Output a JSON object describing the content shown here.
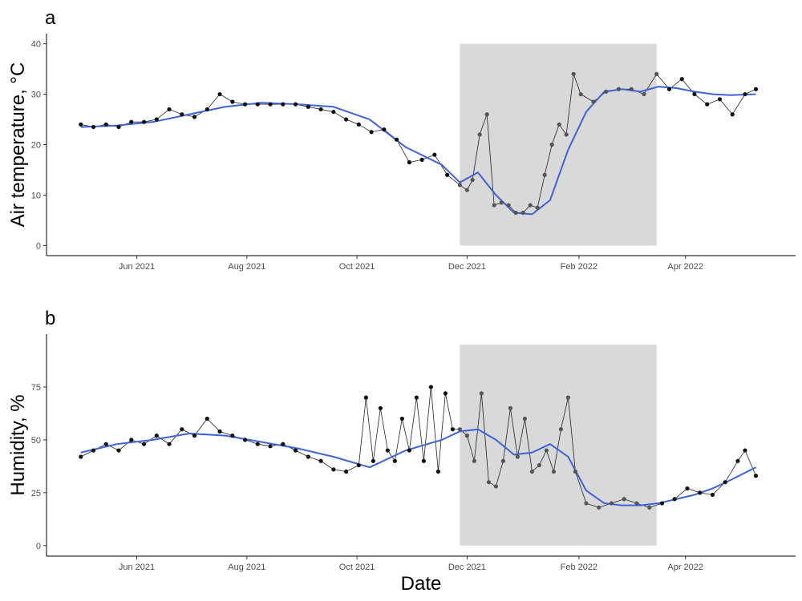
{
  "chart_data": [
    {
      "type": "line",
      "panel_label": "a",
      "ylabel": "Air temperature, °C",
      "xlabel": "",
      "x_type": "date",
      "xlim": [
        "2021-04-12",
        "2022-06-01"
      ],
      "ylim": [
        -2,
        42
      ],
      "x_ticks": [
        "2021-06-01",
        "2021-08-01",
        "2021-10-01",
        "2021-12-01",
        "2022-02-01",
        "2022-04-01"
      ],
      "x_tick_labels": [
        "Jun 2021",
        "Aug 2021",
        "Oct 2021",
        "Dec 2021",
        "Feb 2022",
        "Apr 2022"
      ],
      "y_ticks": [
        0,
        10,
        20,
        30,
        40
      ],
      "y_tick_labels": [
        "0",
        "10",
        "20",
        "30",
        "40"
      ],
      "grid": false,
      "shaded_region": {
        "x": [
          "2021-11-27",
          "2022-03-16"
        ],
        "y": [
          0,
          40
        ],
        "color": "#d9d9d9"
      },
      "observed_color": "#111111",
      "observed_color_in_shade": "#555555",
      "smooth_color": "#3b64db",
      "series": [
        {
          "x": [
            "2021-05-01",
            "2021-05-08",
            "2021-05-15",
            "2021-05-22",
            "2021-05-29",
            "2021-06-05",
            "2021-06-12",
            "2021-06-19",
            "2021-06-26",
            "2021-07-03",
            "2021-07-10",
            "2021-07-17",
            "2021-07-24",
            "2021-07-31",
            "2021-08-07",
            "2021-08-14",
            "2021-08-21",
            "2021-08-28",
            "2021-09-04",
            "2021-09-11",
            "2021-09-18",
            "2021-09-25",
            "2021-10-02",
            "2021-10-09",
            "2021-10-16",
            "2021-10-23",
            "2021-10-30",
            "2021-11-06",
            "2021-11-13",
            "2021-11-20",
            "2021-11-27",
            "2021-12-01",
            "2021-12-04",
            "2021-12-08",
            "2021-12-12",
            "2021-12-16",
            "2021-12-20",
            "2021-12-24",
            "2021-12-28",
            "2022-01-01",
            "2022-01-05",
            "2022-01-09",
            "2022-01-13",
            "2022-01-17",
            "2022-01-21",
            "2022-01-25",
            "2022-01-29",
            "2022-02-02",
            "2022-02-09",
            "2022-02-16",
            "2022-02-23",
            "2022-03-02",
            "2022-03-09",
            "2022-03-16",
            "2022-03-23",
            "2022-03-30",
            "2022-04-06",
            "2022-04-13",
            "2022-04-20",
            "2022-04-27",
            "2022-05-04",
            "2022-05-10"
          ],
          "values": [
            24,
            23.5,
            24,
            23.5,
            24.5,
            24.5,
            25,
            27,
            26,
            25.5,
            27,
            30,
            28.5,
            28,
            28,
            28,
            28,
            28,
            27.5,
            27,
            26.5,
            25,
            24,
            22.5,
            23,
            21,
            16.5,
            17,
            18,
            14,
            12,
            11,
            13,
            22,
            26,
            8,
            8.5,
            8,
            6.5,
            6.5,
            8,
            7.5,
            14,
            20,
            24,
            22,
            34,
            30,
            28.5,
            30.5,
            31,
            31,
            30,
            34,
            31,
            33,
            30,
            28,
            29,
            26,
            30,
            31
          ]
        },
        {
          "name": "",
          "smooth": true,
          "x": [
            "2021-05-01",
            "2021-05-21",
            "2021-06-10",
            "2021-06-30",
            "2021-07-20",
            "2021-08-09",
            "2021-08-29",
            "2021-09-18",
            "2021-10-08",
            "2021-10-28",
            "2021-11-17",
            "2021-11-27",
            "2021-12-07",
            "2021-12-17",
            "2021-12-27",
            "2022-01-06",
            "2022-01-16",
            "2022-01-26",
            "2022-02-05",
            "2022-02-15",
            "2022-02-25",
            "2022-03-07",
            "2022-03-17",
            "2022-03-27",
            "2022-04-06",
            "2022-04-16",
            "2022-04-26",
            "2022-05-10"
          ],
          "values": [
            23.5,
            23.8,
            24.5,
            26,
            27.5,
            28.3,
            28,
            27.5,
            25,
            19.5,
            16,
            12.5,
            14.5,
            10,
            6.5,
            6.2,
            9,
            19,
            26.5,
            30.5,
            31,
            30.5,
            31.5,
            31.2,
            30.5,
            30,
            29.8,
            30
          ]
        }
      ]
    },
    {
      "type": "line",
      "panel_label": "b",
      "ylabel": "Humidity, %",
      "xlabel": "Date",
      "x_type": "date",
      "xlim": [
        "2021-04-12",
        "2022-06-01"
      ],
      "ylim": [
        -5,
        100
      ],
      "x_ticks": [
        "2021-06-01",
        "2021-08-01",
        "2021-10-01",
        "2021-12-01",
        "2022-02-01",
        "2022-04-01"
      ],
      "x_tick_labels": [
        "Jun 2021",
        "Aug 2021",
        "Oct 2021",
        "Dec 2021",
        "Feb 2022",
        "Apr 2022"
      ],
      "y_ticks": [
        0,
        25,
        50,
        75
      ],
      "y_tick_labels": [
        "0",
        "25",
        "50",
        "75"
      ],
      "grid": false,
      "shaded_region": {
        "x": [
          "2021-11-27",
          "2022-03-16"
        ],
        "y": [
          0,
          95
        ],
        "color": "#d9d9d9"
      },
      "observed_color": "#111111",
      "observed_color_in_shade": "#555555",
      "smooth_color": "#3b64db",
      "series": [
        {
          "x": [
            "2021-05-01",
            "2021-05-08",
            "2021-05-15",
            "2021-05-22",
            "2021-05-29",
            "2021-06-05",
            "2021-06-12",
            "2021-06-19",
            "2021-06-26",
            "2021-07-03",
            "2021-07-10",
            "2021-07-17",
            "2021-07-24",
            "2021-07-31",
            "2021-08-07",
            "2021-08-14",
            "2021-08-21",
            "2021-08-28",
            "2021-09-04",
            "2021-09-11",
            "2021-09-18",
            "2021-09-25",
            "2021-10-02",
            "2021-10-06",
            "2021-10-10",
            "2021-10-14",
            "2021-10-18",
            "2021-10-22",
            "2021-10-26",
            "2021-10-30",
            "2021-11-03",
            "2021-11-07",
            "2021-11-11",
            "2021-11-15",
            "2021-11-19",
            "2021-11-23",
            "2021-11-27",
            "2021-12-01",
            "2021-12-05",
            "2021-12-09",
            "2021-12-13",
            "2021-12-17",
            "2021-12-21",
            "2021-12-25",
            "2021-12-29",
            "2022-01-02",
            "2022-01-06",
            "2022-01-10",
            "2022-01-14",
            "2022-01-18",
            "2022-01-22",
            "2022-01-26",
            "2022-01-30",
            "2022-02-05",
            "2022-02-12",
            "2022-02-19",
            "2022-02-26",
            "2022-03-05",
            "2022-03-12",
            "2022-03-19",
            "2022-03-26",
            "2022-04-02",
            "2022-04-09",
            "2022-04-16",
            "2022-04-23",
            "2022-04-30",
            "2022-05-04",
            "2022-05-10"
          ],
          "values": [
            42,
            45,
            48,
            45,
            50,
            48,
            52,
            48,
            55,
            52,
            60,
            54,
            52,
            50,
            48,
            47,
            48,
            45,
            42,
            40,
            36,
            35,
            38,
            70,
            40,
            65,
            45,
            40,
            60,
            45,
            70,
            40,
            75,
            35,
            72,
            55,
            55,
            52,
            40,
            72,
            30,
            28,
            40,
            65,
            42,
            60,
            35,
            38,
            45,
            35,
            55,
            70,
            35,
            20,
            18,
            20,
            22,
            20,
            18,
            20,
            22,
            27,
            25,
            24,
            30,
            40,
            45,
            33
          ]
        },
        {
          "name": "",
          "smooth": true,
          "x": [
            "2021-05-01",
            "2021-05-21",
            "2021-06-10",
            "2021-06-30",
            "2021-07-20",
            "2021-08-09",
            "2021-08-29",
            "2021-09-18",
            "2021-10-08",
            "2021-10-28",
            "2021-11-17",
            "2021-11-27",
            "2021-12-07",
            "2021-12-17",
            "2021-12-27",
            "2022-01-06",
            "2022-01-16",
            "2022-01-26",
            "2022-02-05",
            "2022-02-15",
            "2022-02-25",
            "2022-03-07",
            "2022-03-17",
            "2022-03-27",
            "2022-04-06",
            "2022-04-16",
            "2022-04-26",
            "2022-05-10"
          ],
          "values": [
            44,
            48,
            50,
            53,
            52,
            49,
            46,
            42,
            37,
            45,
            50,
            54,
            55,
            50,
            43,
            44,
            48,
            42,
            26,
            20,
            19,
            19,
            20,
            22,
            24,
            27,
            31,
            37
          ]
        }
      ]
    }
  ]
}
